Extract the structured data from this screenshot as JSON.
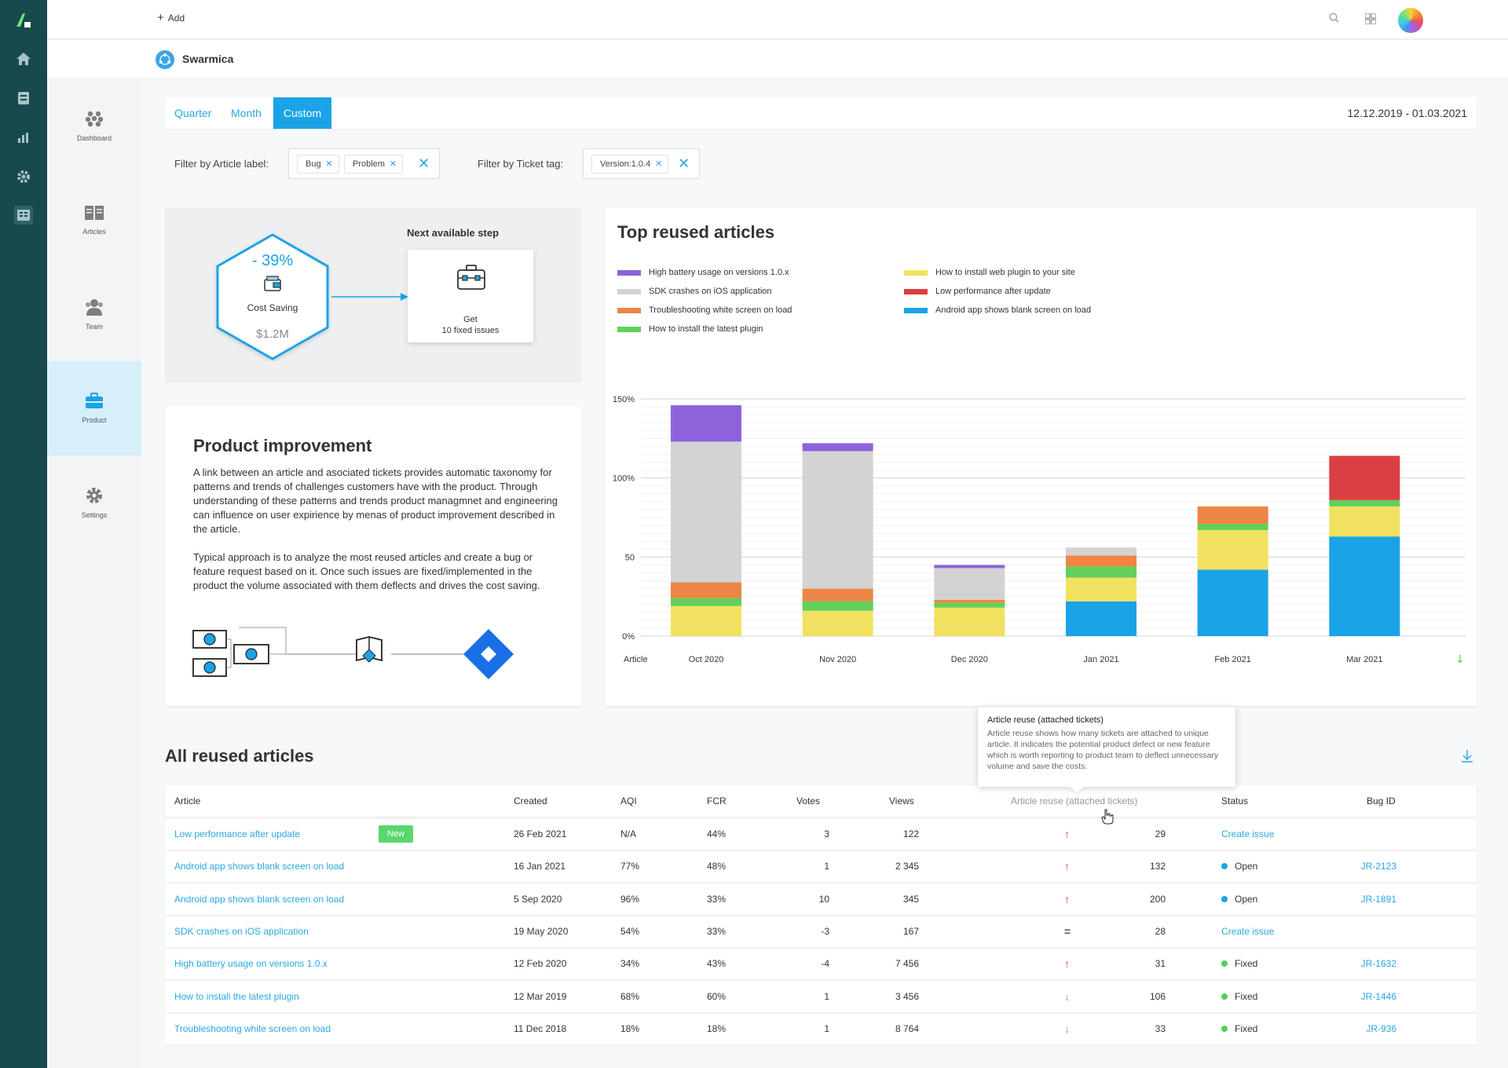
{
  "topbar": {
    "add_label": "Add"
  },
  "org": {
    "name": "Swarmica"
  },
  "sidebar": {
    "items": [
      {
        "label": "Dashboard",
        "icon": "dashboard-icon"
      },
      {
        "label": "Articles",
        "icon": "book-icon"
      },
      {
        "label": "Team",
        "icon": "team-icon"
      },
      {
        "label": "Product",
        "icon": "briefcase-icon"
      },
      {
        "label": "Settings",
        "icon": "gear-icon"
      }
    ],
    "active": "Product"
  },
  "tabs": [
    {
      "label": "Quarter"
    },
    {
      "label": "Month"
    },
    {
      "label": "Custom"
    }
  ],
  "date_range": "12.12.2019 - 01.03.2021",
  "filters": {
    "article_label": {
      "title": "Filter by Article label:",
      "chips": [
        "Bug",
        "Problem"
      ]
    },
    "ticket_tag": {
      "title": "Filter by Ticket tag:",
      "chips": [
        "Version:1.0.4"
      ]
    }
  },
  "cost": {
    "percent": "- 39%",
    "label": "Cost Saving",
    "value": "$1.2M",
    "next_title": "Next available step",
    "next_line1": "Get",
    "next_line2": "10 fixed issues"
  },
  "product_improvement": {
    "title": "Product improvement",
    "p1": "A link between an article and asociated tickets provides automatic taxonomy for patterns and trends of challenges customers have with the product. Through understanding of these patterns and trends product managmnet and engineering can influence on user expirience by menas of product improvement described in the  article.",
    "p2": "Typical approach is to analyze the most reused articles and create a bug or feature request based on it.  Once such issues are fixed/implemented in the product the volume associated with them deflects and drives the cost saving."
  },
  "chart_data": {
    "type": "bar",
    "title": "Top reused articles",
    "stacked": true,
    "xlabel": "Article",
    "categories": [
      "Oct 2020",
      "Nov 2020",
      "Dec 2020",
      "Jan 2021",
      "Feb 2021",
      "Mar 2021"
    ],
    "y_ticks": [
      "0%",
      "50",
      "100%",
      "150%"
    ],
    "y_tick_values": [
      0,
      50,
      100,
      150
    ],
    "ylim": [
      0,
      150
    ],
    "legend_position": "top",
    "series": [
      {
        "name": "Android app shows blank screen on load",
        "color": "#1aa3e6",
        "values": [
          0,
          0,
          0,
          22,
          42,
          63
        ]
      },
      {
        "name": "How to install web plugin to your site",
        "color": "#f2e15f",
        "values": [
          19,
          16,
          18,
          15,
          25,
          19
        ]
      },
      {
        "name": "How to install the latest plugin",
        "color": "#62d05a",
        "values": [
          5,
          6,
          3,
          7,
          4,
          4
        ]
      },
      {
        "name": "Troubleshooting white screen on load",
        "color": "#ed8545",
        "values": [
          10,
          8,
          2,
          7,
          11,
          0
        ]
      },
      {
        "name": "Low performance after update",
        "color": "#dc3f43",
        "values": [
          0,
          0,
          0,
          0,
          0,
          28
        ]
      },
      {
        "name": "SDK crashes on iOS application",
        "color": "#d3d3d3",
        "values": [
          89,
          87,
          20,
          5,
          0,
          0
        ]
      },
      {
        "name": "High battery usage on versions 1.0.x",
        "color": "#8d63db",
        "values": [
          23,
          5,
          2,
          0,
          0,
          0
        ]
      }
    ],
    "legend_order": [
      "High battery usage on versions 1.0.x",
      "How to install web plugin to your site",
      "SDK crashes on iOS application",
      "Low performance after update",
      "Troubleshooting white screen on load",
      "Android app shows blank screen on load",
      "How to install the latest plugin"
    ]
  },
  "all_reused": {
    "title": "All reused articles",
    "columns": [
      "Article",
      "Created",
      "AQI",
      "FCR",
      "Votes",
      "Views",
      "Article reuse (attached tickets)",
      "Status",
      "Bug ID"
    ],
    "rows": [
      {
        "article": "Low performance after update",
        "badge": "New",
        "created": "26 Feb 2021",
        "aqi": "N/A",
        "fcr": "44%",
        "votes": "3",
        "views": "122",
        "trend": "↑",
        "trend_color": "#e8483d",
        "reuse": "29",
        "status": "Create issue",
        "status_color": "",
        "bug": ""
      },
      {
        "article": "Android app shows blank screen on load",
        "badge": "",
        "created": "16 Jan 2021",
        "aqi": "77%",
        "fcr": "48%",
        "votes": "1",
        "views": "2 345",
        "trend": "↑",
        "trend_color": "#e8483d",
        "reuse": "132",
        "status": "Open",
        "status_color": "#1aa3e6",
        "bug": "JR-2123"
      },
      {
        "article": "Android app shows blank screen on load",
        "badge": "",
        "created": "5 Sep 2020",
        "aqi": "96%",
        "fcr": "33%",
        "votes": "10",
        "views": "345",
        "trend": "↑",
        "trend_color": "#e8483d",
        "reuse": "200",
        "status": "Open",
        "status_color": "#1aa3e6",
        "bug": "JR-1891"
      },
      {
        "article": "SDK crashes on iOS application",
        "badge": "",
        "created": "19 May 2020",
        "aqi": "54%",
        "fcr": "33%",
        "votes": "-3",
        "views": "167",
        "trend": "=",
        "trend_color": "#555555",
        "reuse": "28",
        "status": "Create issue",
        "status_color": "",
        "bug": ""
      },
      {
        "article": "High battery usage on versions 1.0.x",
        "badge": "",
        "created": "12 Feb 2020",
        "aqi": "34%",
        "fcr": "43%",
        "votes": "-4",
        "views": "7 456",
        "trend": "↑",
        "trend_color": "#e8483d",
        "reuse": "31",
        "status": "Fixed",
        "status_color": "#4fcf5a",
        "bug": "JR-1632"
      },
      {
        "article": "How to install the latest plugin",
        "badge": "",
        "created": "12 Mar 2019",
        "aqi": "68%",
        "fcr": "60%",
        "votes": "1",
        "views": "3 456",
        "trend": "↓",
        "trend_color": "#4fcf5a",
        "reuse": "106",
        "status": "Fixed",
        "status_color": "#4fcf5a",
        "bug": "JR-1446"
      },
      {
        "article": "Troubleshooting white screen on load",
        "badge": "",
        "created": "11 Dec 2018",
        "aqi": "18%",
        "fcr": "18%",
        "votes": "1",
        "views": "8 764",
        "trend": "↓",
        "trend_color": "#4fcf5a",
        "reuse": "33",
        "status": "Fixed",
        "status_color": "#4fcf5a",
        "bug": "JR-936"
      }
    ]
  },
  "tooltip": {
    "title": "Article reuse (attached tickets)",
    "body": "Article reuse shows how many tickets are attached to unique article. It indicates the potential product defect or new feature which is worth reporting to product team to deflect unnecessary volume and save the costs."
  }
}
